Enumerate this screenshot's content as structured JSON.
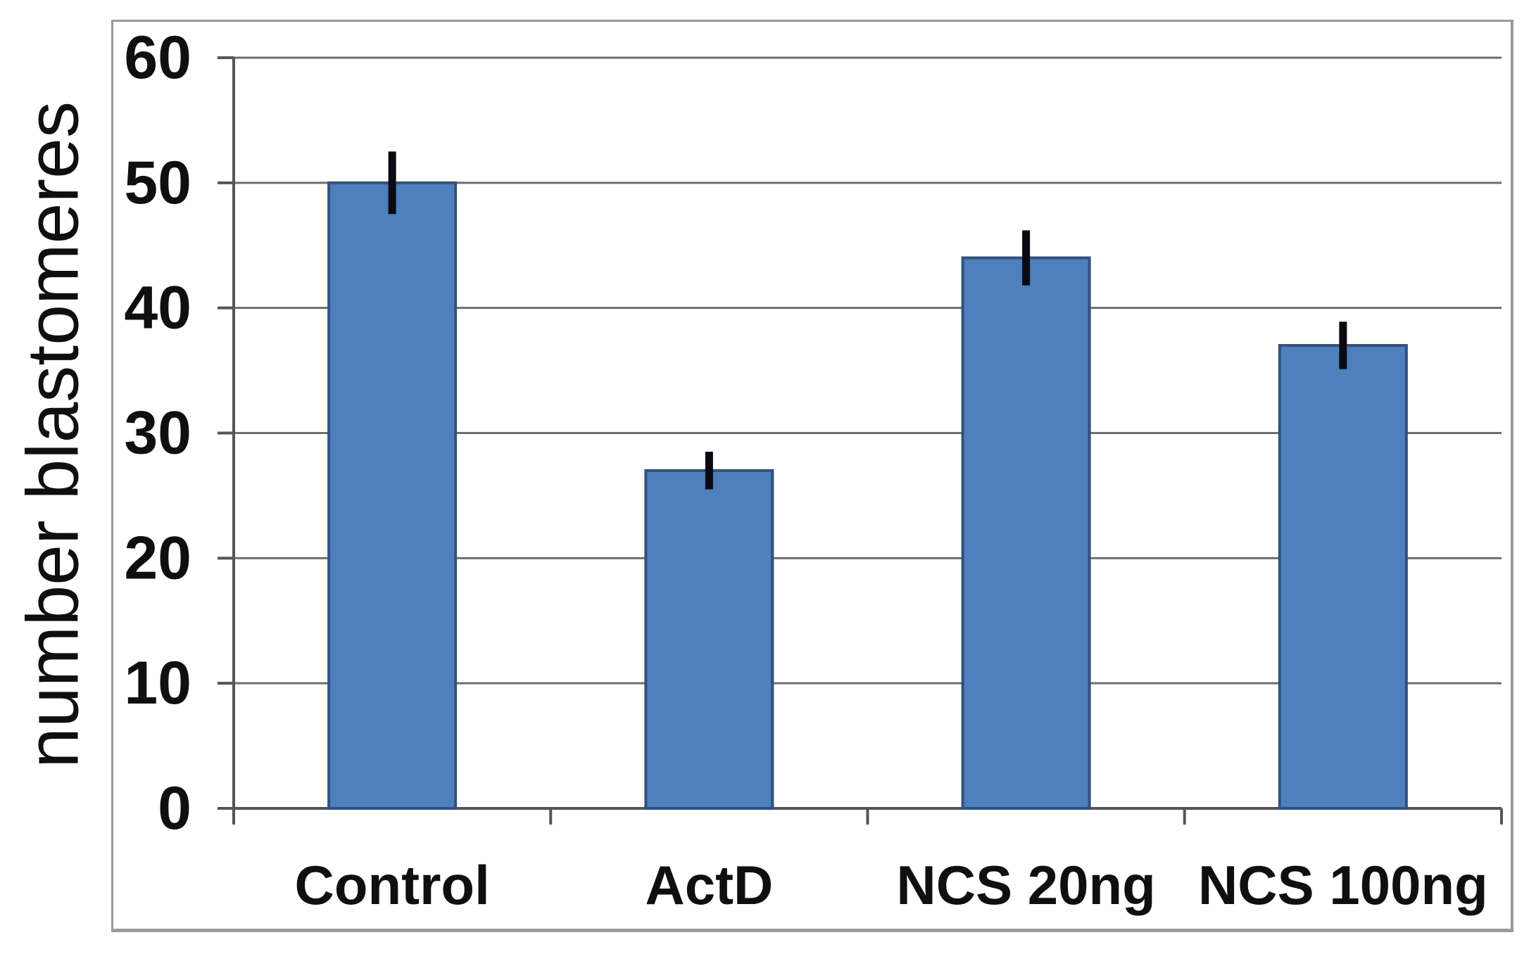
{
  "figure": {
    "ylabel": "number blastomeres",
    "background_color": "#ffffff",
    "border_color": "#9b9b9b"
  },
  "chart_data": {
    "type": "bar",
    "title": "",
    "xlabel": "",
    "ylabel": "number blastomeres",
    "categories": [
      "Control",
      "ActD",
      "NCS 20ng",
      "NCS 100ng"
    ],
    "values": [
      50,
      27,
      44,
      37
    ],
    "error_plus": [
      2.5,
      1.5,
      2.2,
      1.9
    ],
    "error_minus": [
      2.5,
      1.5,
      2.2,
      1.9
    ],
    "ylim": [
      0,
      60
    ],
    "yticks": [
      0,
      10,
      20,
      30,
      40,
      50,
      60
    ],
    "grid": true,
    "legend": "none",
    "bar_color": "#4d80bd",
    "bar_border_color": "#33507c",
    "gridline_color": "#6e6e6e",
    "axis_color": "#555555",
    "error_bar_color": "#0a0a14",
    "text_color": "#0f0f0f"
  }
}
